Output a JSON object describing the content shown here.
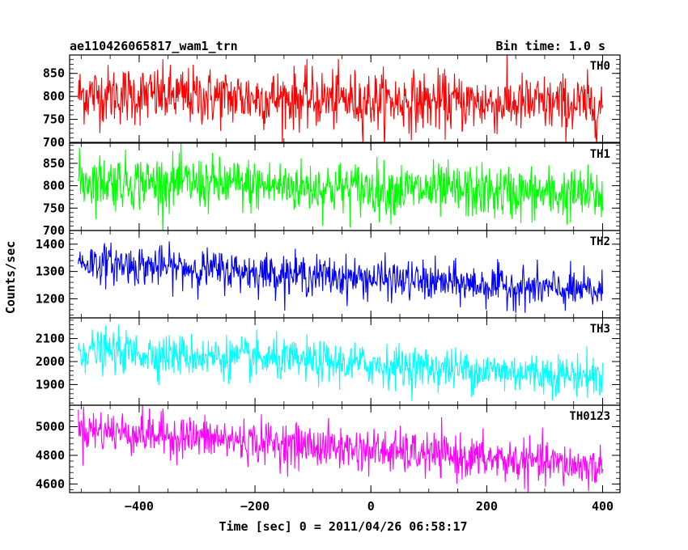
{
  "header": {
    "title": "ae110426065817_wam1_trn",
    "bin_time": "Bin time: 1.0 s"
  },
  "chart_data": {
    "type": "line",
    "xlabel": "Time [sec] 0 = 2011/04/26 06:58:17",
    "ylabel": "Counts/sec",
    "xlim": [
      -520,
      430
    ],
    "x_ticks": [
      -400,
      -200,
      0,
      200,
      400
    ],
    "x_tick_labels": [
      "−400",
      "−200",
      "0",
      "200",
      "400"
    ],
    "x_range_data": [
      -505,
      400
    ],
    "panels": [
      {
        "name": "TH0",
        "color": "#ff0000",
        "ylim": [
          700,
          890
        ],
        "yticks": [
          700,
          750,
          800,
          850
        ],
        "ytick_labels": [
          "700",
          "750",
          "800",
          "850"
        ],
        "start_mean": 805,
        "end_mean": 780,
        "noise": 32
      },
      {
        "name": "TH1",
        "color": "#00ff00",
        "ylim": [
          700,
          895
        ],
        "yticks": [
          700,
          750,
          800,
          850
        ],
        "ytick_labels": [
          "700",
          "750",
          "800",
          "850"
        ],
        "start_mean": 812,
        "end_mean": 778,
        "noise": 30
      },
      {
        "name": "TH2",
        "color": "#0000ff",
        "ylim": [
          1130,
          1450
        ],
        "yticks": [
          1200,
          1300,
          1400
        ],
        "ytick_labels": [
          "1200",
          "1300",
          "1400"
        ],
        "start_mean": 1335,
        "end_mean": 1225,
        "noise": 36
      },
      {
        "name": "TH3",
        "color": "#00ffff",
        "ylim": [
          1810,
          2190
        ],
        "yticks": [
          1900,
          2000,
          2100
        ],
        "ytick_labels": [
          "1900",
          "2000",
          "2100"
        ],
        "start_mean": 2050,
        "end_mean": 1935,
        "noise": 45
      },
      {
        "name": "TH0123",
        "color": "#ff00ff",
        "ylim": [
          4540,
          5150
        ],
        "yticks": [
          4600,
          4800,
          5000
        ],
        "ytick_labels": [
          "4600",
          "4800",
          "5000"
        ],
        "start_mean": 4985,
        "end_mean": 4715,
        "noise": 75
      }
    ]
  }
}
